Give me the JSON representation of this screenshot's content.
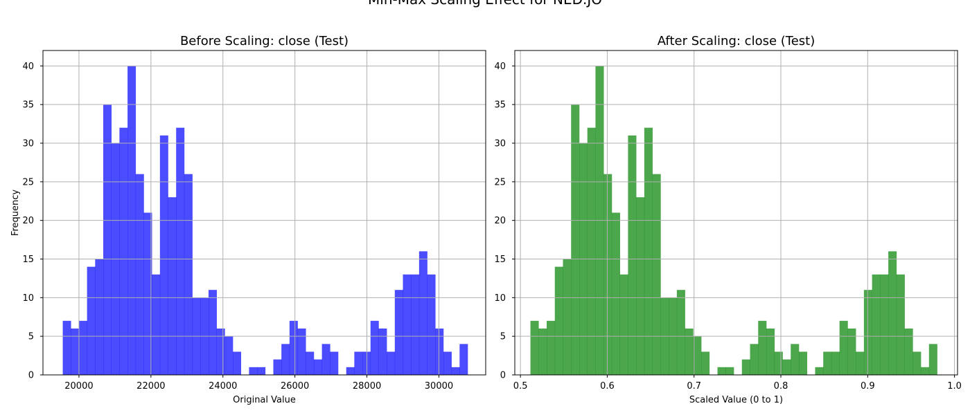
{
  "figure_title": "Min-Max Scaling Effect for NED.JO",
  "chart_data": [
    {
      "type": "bar",
      "title": "Before Scaling: close (Test)",
      "xlabel": "Original Value",
      "ylabel": "Frequency",
      "xlim": [
        19000,
        31300
      ],
      "ylim": [
        0,
        42
      ],
      "xticks": [
        20000,
        22000,
        24000,
        26000,
        28000,
        30000
      ],
      "yticks": [
        0,
        5,
        10,
        15,
        20,
        25,
        30,
        35,
        40
      ],
      "bin_start": 19550,
      "bin_width": 225,
      "values": [
        7,
        6,
        7,
        14,
        15,
        35,
        30,
        32,
        40,
        26,
        21,
        13,
        31,
        23,
        32,
        26,
        10,
        10,
        11,
        6,
        5,
        3,
        0,
        1,
        1,
        0,
        2,
        4,
        7,
        6,
        3,
        2,
        4,
        3,
        0,
        1,
        3,
        3,
        7,
        6,
        3,
        11,
        13,
        13,
        16,
        13,
        6,
        3,
        1,
        4
      ],
      "color": "#0000ff",
      "alpha": 0.7,
      "grid": true
    },
    {
      "type": "bar",
      "title": "After Scaling: close (Test)",
      "xlabel": "Scaled Value (0 to 1)",
      "ylabel": "",
      "xlim": [
        0.4935,
        1.0035
      ],
      "ylim": [
        0,
        42
      ],
      "xticks": [
        "0.5",
        "0.6",
        "0.7",
        "0.8",
        "0.9",
        "1.0"
      ],
      "xtick_values": [
        0.5,
        0.6,
        0.7,
        0.8,
        0.9,
        1.0
      ],
      "yticks": [
        0,
        5,
        10,
        15,
        20,
        25,
        30,
        35,
        40
      ],
      "bin_start": 0.5115,
      "bin_width": 0.00937,
      "values": [
        7,
        6,
        7,
        14,
        15,
        35,
        30,
        32,
        40,
        26,
        21,
        13,
        31,
        23,
        32,
        26,
        10,
        10,
        11,
        6,
        5,
        3,
        0,
        1,
        1,
        0,
        2,
        4,
        7,
        6,
        3,
        2,
        4,
        3,
        0,
        1,
        3,
        3,
        7,
        6,
        3,
        11,
        13,
        13,
        16,
        13,
        6,
        3,
        1,
        4
      ],
      "color": "#008000",
      "alpha": 0.7,
      "grid": true
    }
  ]
}
